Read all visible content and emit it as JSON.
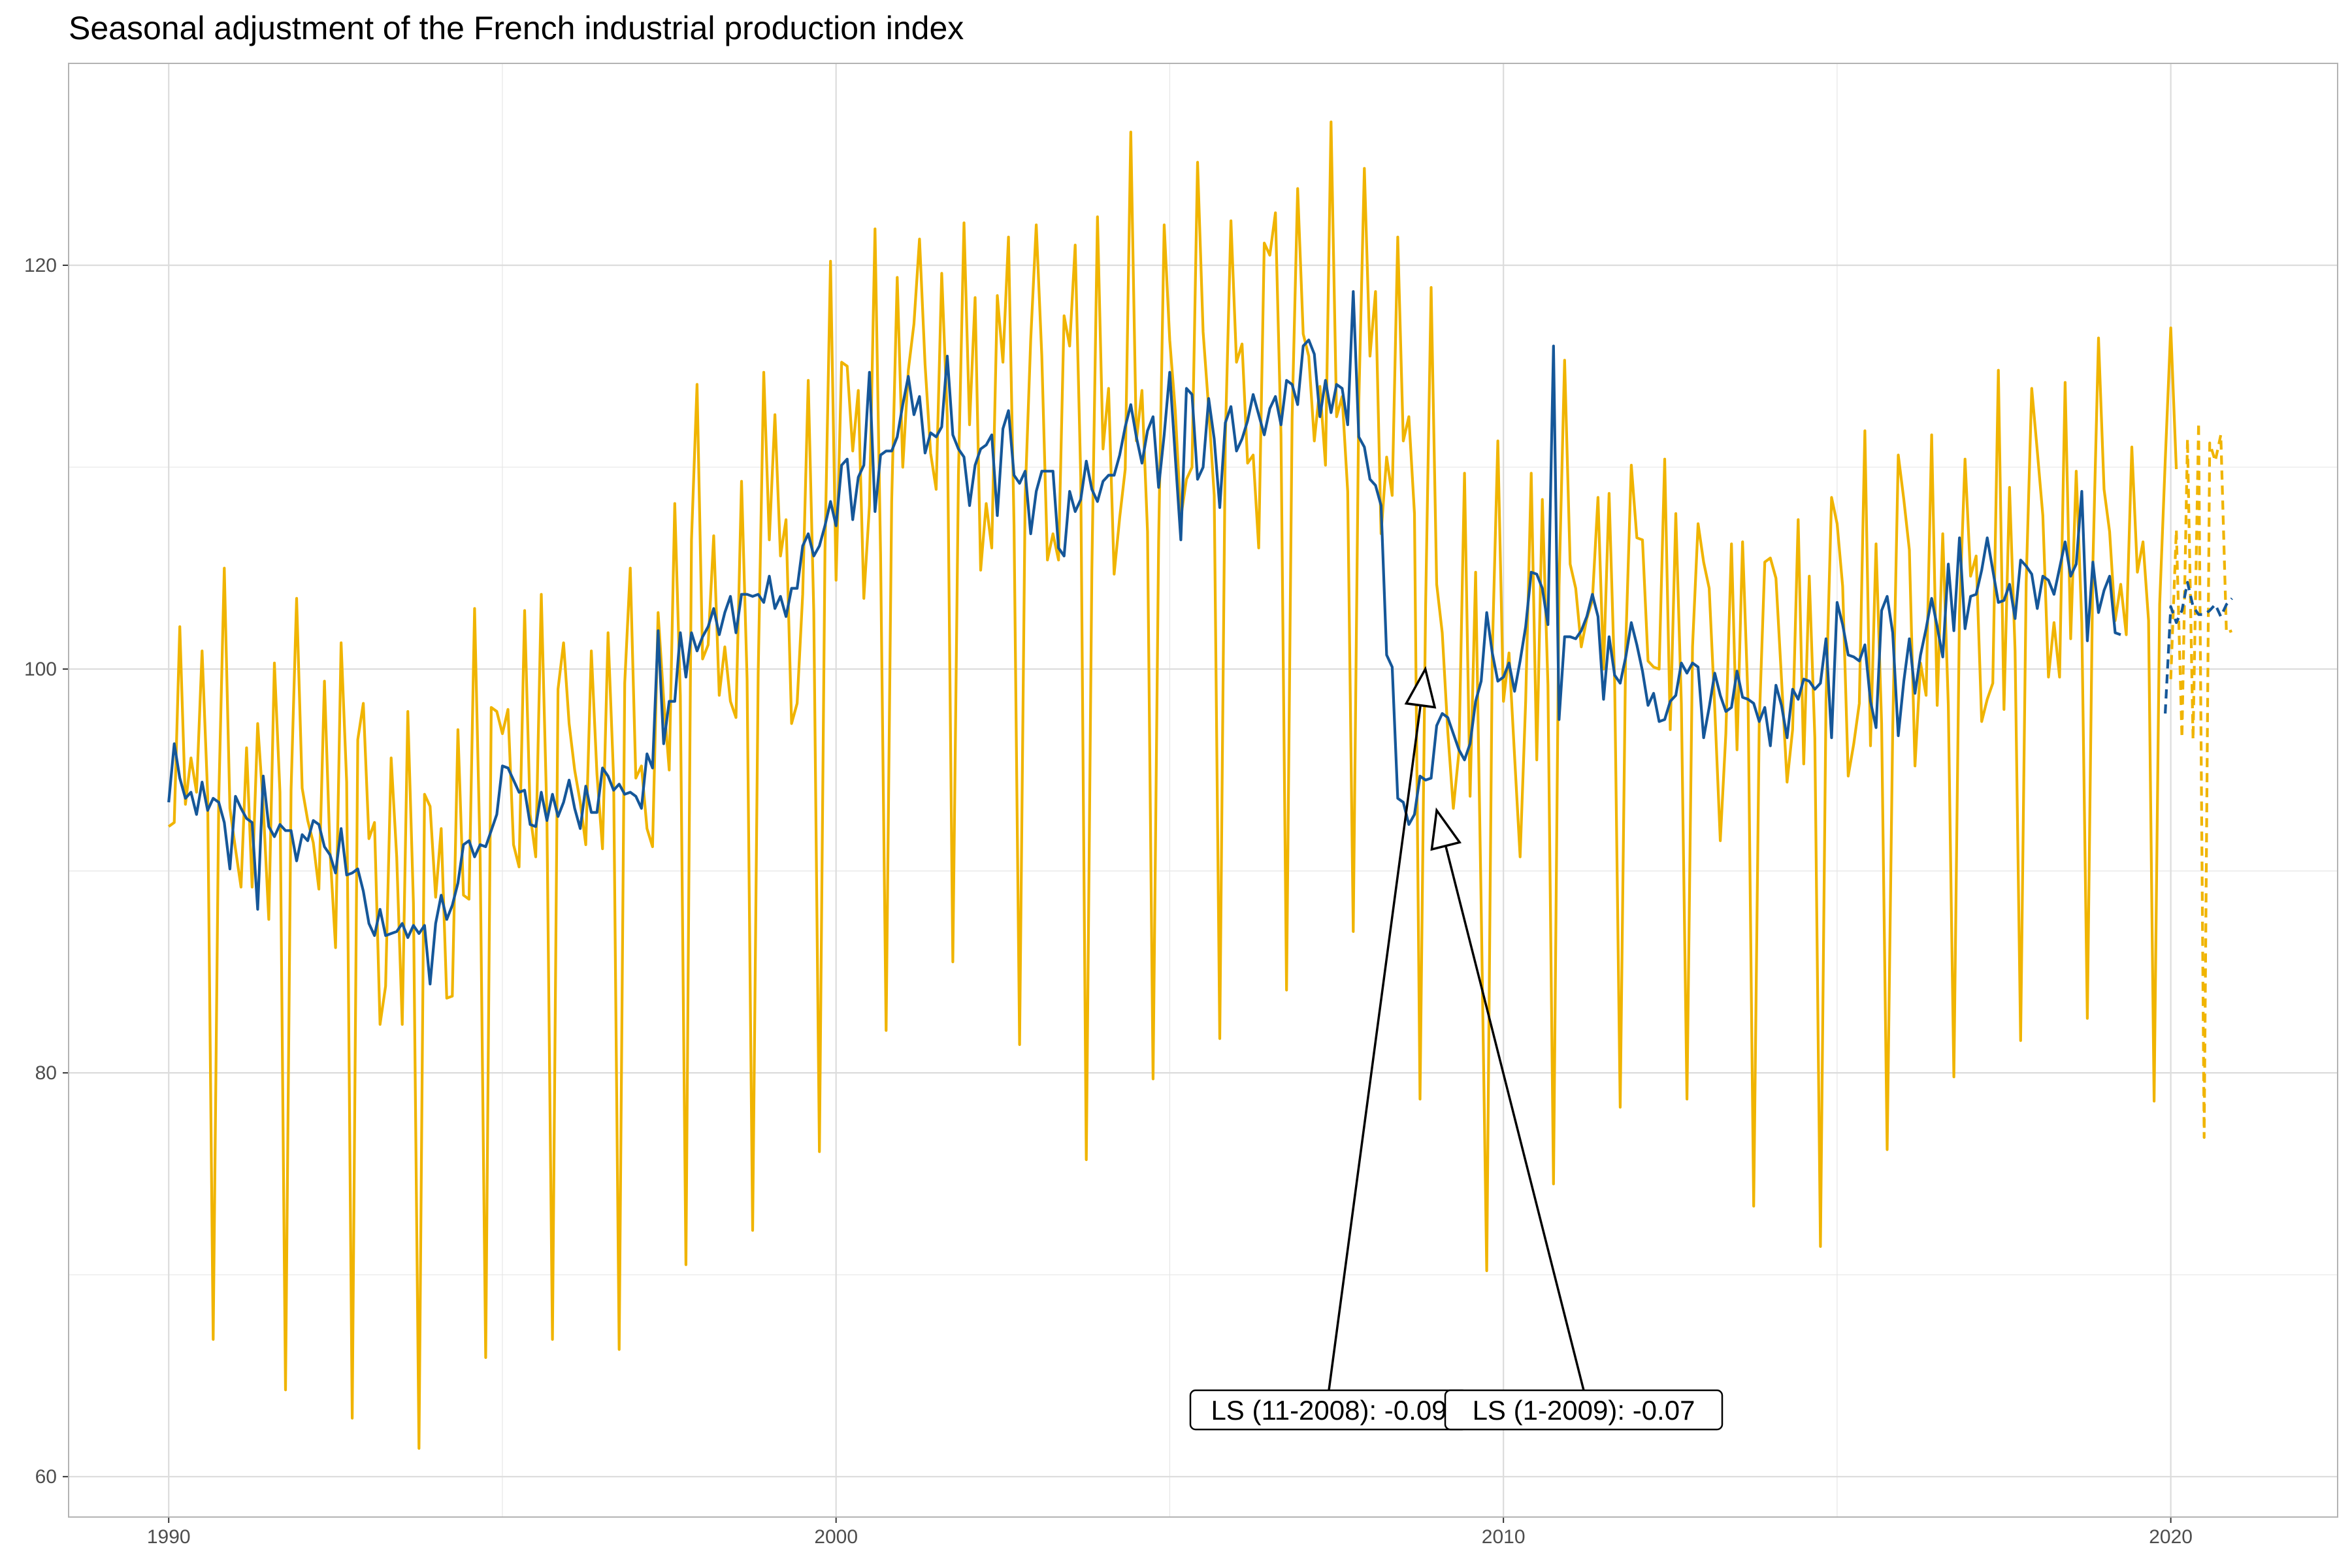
{
  "chart_data": {
    "type": "line",
    "title": "Seasonal adjustment of the French industrial production index",
    "xlabel": "",
    "ylabel": "",
    "xlim": [
      1988.5,
      2022.5
    ],
    "ylim": [
      58.0,
      130.0
    ],
    "x_ticks": [
      1990,
      2000,
      2010,
      2020
    ],
    "x_minor_ticks": [
      1995,
      2005,
      2015
    ],
    "y_ticks": [
      60,
      80,
      100,
      120
    ],
    "y_minor_ticks": [
      70,
      90,
      110
    ],
    "grid": true,
    "legend": "none",
    "colors": {
      "raw": "#f0b400",
      "sa": "#155799",
      "frame": "#b3b3b3",
      "grid": "#e6e6e6"
    },
    "series": [
      {
        "role": "raw",
        "style": "solid",
        "x_start": 1990.0,
        "step": 0.083333,
        "values": [
          92.2,
          92.4,
          102.1,
          93.3,
          95.6,
          93.9,
          100.9,
          93.8,
          66.8,
          93.5,
          105.0,
          93.1,
          91.1,
          89.2,
          96.1,
          89.2,
          97.3,
          93.2,
          87.6,
          100.3,
          93.9,
          64.3,
          94.0,
          103.5,
          94.1,
          92.5,
          91.4,
          89.1,
          99.4,
          91.0,
          86.2,
          101.3,
          94.4,
          62.9,
          96.5,
          98.3,
          91.6,
          92.4,
          82.4,
          84.3,
          95.6,
          90.7,
          82.4,
          97.9,
          88.4,
          61.4,
          93.8,
          93.2,
          88.7,
          92.1,
          83.7,
          83.8,
          97.0,
          88.8,
          88.6,
          103.0,
          90.7,
          65.9,
          98.1,
          97.9,
          96.8,
          98.0,
          91.3,
          90.2,
          102.9,
          92.8,
          90.7,
          103.7,
          92.7,
          66.8,
          99.0,
          101.3,
          97.3,
          95.0,
          93.4,
          91.3,
          100.9,
          94.8,
          91.1,
          101.8,
          94.6,
          66.3,
          99.3,
          105.0,
          94.6,
          95.2,
          92.1,
          91.2,
          102.8,
          98.5,
          95.0,
          108.2,
          98.7,
          70.5,
          106.4,
          114.1,
          100.5,
          101.2,
          106.6,
          98.7,
          101.1,
          98.4,
          97.6,
          109.3,
          99.5,
          72.2,
          99.8,
          114.7,
          106.4,
          112.6,
          105.6,
          107.4,
          97.3,
          98.3,
          103.7,
          114.3,
          102.8,
          76.1,
          105.8,
          120.2,
          104.4,
          115.2,
          115.0,
          110.8,
          113.8,
          103.5,
          108.1,
          121.8,
          105.7,
          82.1,
          108.3,
          119.4,
          110.0,
          114.8,
          117.1,
          121.3,
          115.1,
          110.7,
          108.9,
          119.6,
          112.5,
          85.5,
          109.6,
          122.1,
          112.1,
          118.4,
          104.9,
          108.2,
          106.0,
          118.5,
          115.2,
          121.4,
          107.1,
          81.4,
          108.5,
          116.3,
          122.0,
          115.5,
          105.4,
          106.7,
          105.4,
          117.5,
          116.0,
          121.0,
          109.5,
          75.7,
          104.9,
          122.4,
          110.9,
          113.9,
          104.7,
          107.5,
          109.9,
          126.6,
          111.3,
          113.8,
          106.8,
          79.7,
          106.3,
          122.0,
          116.3,
          112.8,
          107.5,
          109.4,
          110.0,
          125.1,
          116.7,
          112.9,
          108.6,
          81.7,
          111.4,
          122.2,
          115.2,
          116.1,
          110.2,
          110.6,
          106.0,
          121.1,
          120.5,
          122.6,
          111.6,
          84.1,
          112.4,
          123.8,
          116.6,
          115.5,
          111.3,
          114.0,
          110.1,
          127.1,
          112.5,
          113.5,
          108.8,
          87.0,
          113.2,
          124.8,
          115.5,
          118.7,
          106.7,
          110.5,
          108.6,
          121.4,
          111.3,
          112.5,
          107.7,
          78.7,
          103.0,
          118.9,
          104.2,
          101.8,
          96.9,
          93.1,
          95.9,
          109.7,
          93.7,
          104.8,
          88.3,
          70.2,
          100.8,
          111.3,
          98.4,
          100.8,
          95.7,
          90.7,
          98.4,
          109.7,
          95.5,
          108.4,
          99.2,
          74.5,
          104.1,
          115.3,
          105.2,
          104.0,
          101.1,
          102.5,
          103.4,
          108.5,
          100.0,
          108.7,
          99.4,
          78.3,
          101.2,
          110.1,
          106.5,
          106.4,
          100.4,
          100.1,
          100.0,
          110.4,
          97.0,
          107.7,
          98.3,
          78.7,
          101.1,
          107.2,
          105.3,
          104.0,
          98.1,
          91.5,
          96.8,
          106.2,
          96.0,
          106.3,
          98.3,
          73.4,
          97.3,
          105.3,
          105.5,
          104.5,
          99.5,
          94.4,
          97.0,
          107.4,
          95.3,
          104.6,
          96.6,
          71.4,
          98.4,
          108.5,
          107.2,
          104.1,
          94.7,
          96.3,
          98.3,
          111.8,
          96.2,
          106.2,
          97.3,
          76.2,
          97.0,
          110.6,
          108.4,
          105.9,
          95.2,
          100.3,
          98.7,
          111.6,
          98.2,
          106.7,
          98.2,
          79.8,
          102.8,
          110.4,
          104.6,
          105.6,
          97.4,
          98.5,
          99.3,
          114.8,
          98.0,
          109.0,
          100.9,
          81.6,
          104.3,
          113.9,
          110.8,
          107.6,
          99.6,
          102.3,
          99.6,
          114.2,
          101.5,
          109.8,
          102.3,
          82.7,
          105.2,
          116.4,
          108.9,
          106.8,
          102.4,
          104.2,
          101.7,
          111.0,
          104.8,
          106.3,
          102.4,
          78.6,
          103.2,
          110.3,
          116.9,
          109.9
        ]
      },
      {
        "role": "sa",
        "style": "solid",
        "x_start": 1990.0,
        "step": 0.083333,
        "values": [
          93.4,
          96.3,
          94.6,
          93.6,
          93.9,
          92.8,
          94.4,
          93.0,
          93.6,
          93.4,
          92.4,
          90.1,
          93.7,
          93.1,
          92.6,
          92.4,
          88.1,
          94.7,
          92.2,
          91.7,
          92.3,
          92.0,
          92.0,
          90.5,
          91.8,
          91.5,
          92.5,
          92.3,
          91.2,
          90.8,
          89.9,
          92.1,
          89.8,
          89.9,
          90.1,
          89.0,
          87.4,
          86.8,
          88.1,
          86.8,
          86.9,
          87.0,
          87.4,
          86.7,
          87.3,
          86.9,
          87.3,
          84.4,
          87.4,
          88.8,
          87.6,
          88.3,
          89.4,
          91.3,
          91.5,
          90.7,
          91.3,
          91.2,
          92.0,
          92.8,
          95.2,
          95.1,
          94.5,
          93.9,
          94.0,
          92.3,
          92.2,
          93.9,
          92.5,
          93.8,
          92.7,
          93.4,
          94.5,
          93.1,
          92.1,
          94.2,
          92.9,
          92.9,
          95.1,
          94.7,
          94.0,
          94.3,
          93.8,
          93.9,
          93.7,
          93.1,
          95.8,
          95.1,
          101.9,
          96.3,
          98.4,
          98.4,
          101.8,
          99.6,
          101.8,
          100.9,
          101.6,
          102.1,
          103.0,
          101.7,
          102.8,
          103.6,
          101.8,
          103.7,
          103.7,
          103.6,
          103.7,
          103.3,
          104.6,
          103.0,
          103.6,
          102.6,
          104.0,
          104.0,
          106.1,
          106.7,
          105.6,
          106.1,
          107.1,
          108.3,
          107.1,
          110.1,
          110.4,
          107.4,
          109.5,
          110.1,
          114.7,
          107.8,
          110.6,
          110.8,
          110.8,
          111.5,
          113.1,
          114.5,
          112.6,
          113.5,
          110.7,
          111.7,
          111.5,
          112.0,
          115.5,
          111.6,
          110.9,
          110.5,
          108.1,
          110.1,
          110.9,
          111.1,
          111.6,
          107.6,
          111.9,
          112.8,
          109.6,
          109.2,
          109.8,
          106.7,
          108.8,
          109.8,
          109.8,
          109.8,
          106.0,
          105.6,
          108.8,
          107.8,
          108.4,
          110.3,
          108.9,
          108.3,
          109.3,
          109.6,
          109.6,
          110.6,
          112.0,
          113.1,
          111.5,
          110.2,
          111.8,
          112.5,
          109.0,
          111.6,
          114.7,
          110.5,
          106.4,
          113.9,
          113.6,
          109.4,
          110.0,
          113.4,
          111.4,
          108.0,
          112.2,
          113.0,
          110.8,
          111.4,
          112.3,
          113.6,
          112.6,
          111.6,
          112.9,
          113.5,
          112.1,
          114.3,
          114.1,
          113.1,
          116.0,
          116.3,
          115.6,
          112.5,
          114.3,
          112.7,
          114.1,
          113.9,
          112.1,
          118.7,
          111.5,
          111.0,
          109.4,
          109.1,
          108.1,
          100.7,
          100.1,
          93.6,
          93.4,
          92.3,
          92.8,
          94.7,
          94.5,
          94.6,
          97.2,
          97.8,
          97.6,
          96.8,
          96.0,
          95.5,
          96.3,
          98.4,
          99.4,
          102.8,
          100.8,
          99.4,
          99.6,
          100.3,
          98.9,
          100.4,
          102.1,
          104.8,
          104.7,
          104.0,
          102.2,
          116.0,
          97.5,
          101.6,
          101.6,
          101.5,
          101.9,
          102.6,
          103.7,
          102.6,
          98.5,
          101.6,
          99.7,
          99.3,
          100.6,
          102.3,
          101.2,
          99.9,
          98.2,
          98.8,
          97.4,
          97.5,
          98.4,
          98.7,
          100.3,
          99.8,
          100.3,
          100.1,
          96.6,
          98.1,
          99.8,
          98.7,
          97.9,
          98.1,
          99.9,
          98.6,
          98.5,
          98.3,
          97.4,
          98.1,
          96.2,
          99.2,
          98.2,
          96.6,
          99.0,
          98.5,
          99.5,
          99.4,
          99.0,
          99.3,
          101.5,
          96.6,
          103.3,
          102.2,
          100.7,
          100.6,
          100.4,
          101.2,
          98.4,
          97.1,
          102.9,
          103.6,
          101.8,
          96.7,
          99.4,
          101.5,
          98.8,
          100.7,
          102.0,
          103.5,
          102.1,
          100.6,
          105.2,
          101.9,
          106.5,
          102.0,
          103.6,
          103.7,
          104.9,
          106.5,
          104.9,
          103.3,
          103.4,
          104.2,
          102.5,
          105.4,
          105.1,
          104.7,
          103.0,
          104.6,
          104.4,
          103.7,
          105.0,
          106.3,
          104.6,
          105.2,
          108.8,
          101.4,
          105.3,
          102.8,
          103.9,
          104.6,
          101.8,
          101.7
        ]
      },
      {
        "role": "raw-forecast",
        "style": "dashed",
        "x_start": 2020.0,
        "step": 0.083333,
        "values": [
          99.5,
          106.9,
          96.6,
          111.4,
          96.5,
          112.2,
          76.8,
          111.2,
          110.3,
          111.6,
          101.8,
          101.9
        ]
      },
      {
        "role": "sa-forecast",
        "style": "dashed",
        "x_start": 2019.9167,
        "step": 0.083333,
        "values": [
          97.8,
          103.1,
          102.3,
          102.9,
          104.3,
          103.1,
          102.7,
          102.7,
          102.9,
          103.2,
          102.6,
          103.2,
          103.5
        ]
      }
    ],
    "annotations": [
      {
        "label": "LS (11-2008): -0.09",
        "x": 2008.83,
        "y": 100.0
      },
      {
        "label": "LS (1-2009): -0.07",
        "x": 2009.0,
        "y": 93.0
      }
    ]
  }
}
